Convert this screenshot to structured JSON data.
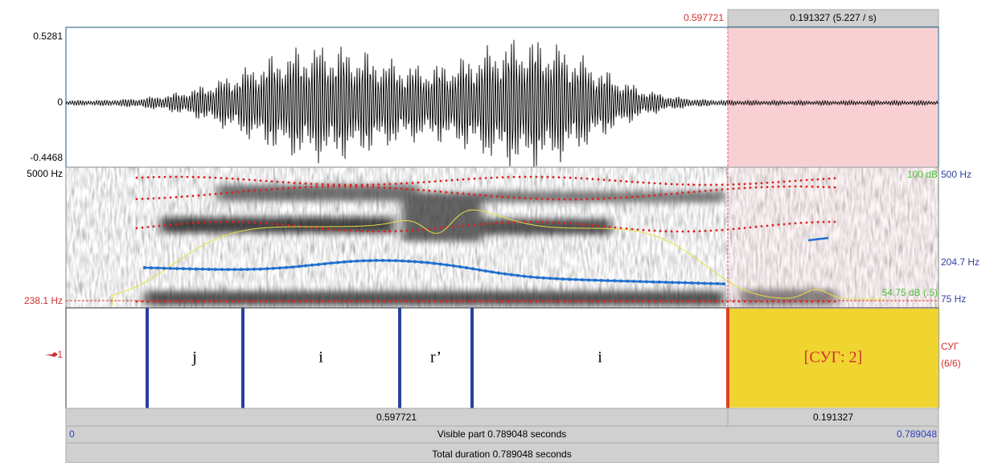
{
  "header": {
    "selection_start": "0.597721",
    "selection_length": "0.191327 (5.227 / s)"
  },
  "waveform": {
    "max": "0.5281",
    "zero": "0",
    "min": "-0.4468"
  },
  "spectrogram": {
    "top": "5000 Hz",
    "cursor": "238.1 Hz",
    "intensity_max": "100 dB",
    "pitch_max": "500 Hz",
    "pitch_value": "204.7 Hz",
    "intensity_value": "54.75 dB (.5)",
    "pitch_min": "75 Hz"
  },
  "tier": {
    "number": "1",
    "name": "СУГ",
    "count": "(6/6)",
    "intervals": [
      {
        "label": "j"
      },
      {
        "label": "i"
      },
      {
        "label": "r’"
      },
      {
        "label": "i"
      },
      {
        "label": "[СУГ: 2]"
      }
    ]
  },
  "footer": {
    "before_selection": "0.597721",
    "selection": "0.191327",
    "visible_start": "0",
    "visible_part": "Visible part 0.789048 seconds",
    "visible_end": "0.789048",
    "total_duration": "Total duration 0.789048 seconds"
  }
}
